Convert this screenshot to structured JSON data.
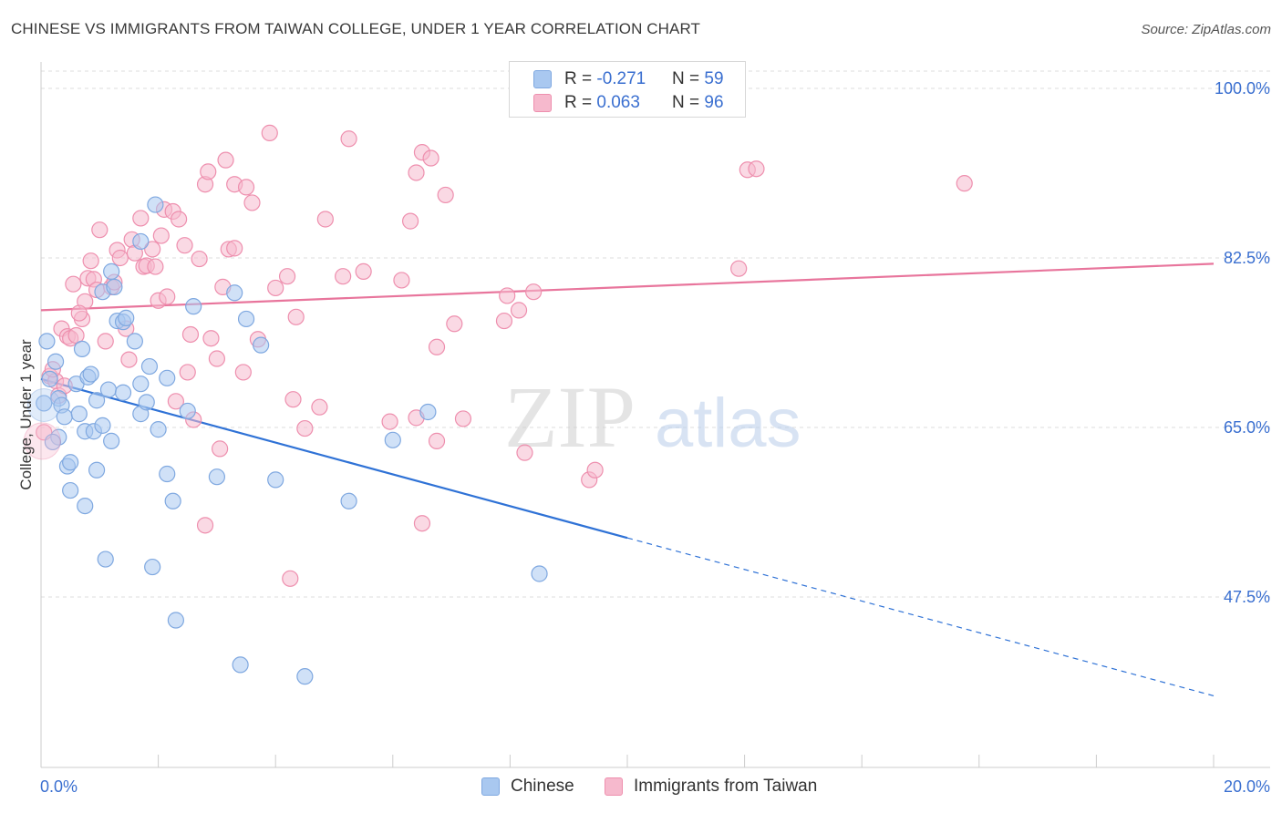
{
  "title": "CHINESE VS IMMIGRANTS FROM TAIWAN COLLEGE, UNDER 1 YEAR CORRELATION CHART",
  "source": "Source: ZipAtlas.com",
  "watermark": {
    "zip": "ZIP",
    "atlas": "atlas"
  },
  "colors": {
    "blue_fill": "#a9c8f0",
    "blue_stroke": "#7fa8e0",
    "blue_line": "#2f72d6",
    "pink_fill": "#f6b9cd",
    "pink_stroke": "#ee8fae",
    "pink_line": "#e8759c",
    "tick_label": "#3a6fd0",
    "grid": "#dddddd"
  },
  "legend_top": {
    "rows": [
      {
        "r_label": "R = ",
        "r_value": "-0.271",
        "n_label": "N = ",
        "n_value": "59"
      },
      {
        "r_label": "R = ",
        "r_value": "0.063",
        "n_label": "N = ",
        "n_value": "96"
      }
    ]
  },
  "legend_bottom": {
    "items": [
      "Chinese",
      "Immigrants from Taiwan"
    ]
  },
  "chart_data": {
    "type": "scatter",
    "title": "CHINESE VS IMMIGRANTS FROM TAIWAN COLLEGE, UNDER 1 YEAR CORRELATION CHART",
    "xlabel": "",
    "ylabel": "College, Under 1 year",
    "xlim": [
      0,
      20
    ],
    "ylim": [
      32.5,
      103.5
    ],
    "x_tick_labels": [
      "0.0%",
      "20.0%"
    ],
    "y_ticks": [
      47.5,
      65.0,
      82.5,
      100.0
    ],
    "y_tick_labels": [
      "47.5%",
      "65.0%",
      "82.5%",
      "100.0%"
    ],
    "grid": true,
    "series": [
      {
        "name": "Chinese",
        "r": -0.271,
        "n": 59,
        "trend": {
          "x0": 0,
          "y0": 70.0,
          "x1": 10.0,
          "y1": 53.6,
          "x_end": 20.0,
          "y_end": 37.3
        },
        "points": [
          [
            0.1,
            73.9
          ],
          [
            0.25,
            71.8
          ],
          [
            0.15,
            70.0
          ],
          [
            0.3,
            68.0
          ],
          [
            0.35,
            67.3
          ],
          [
            0.4,
            66.1
          ],
          [
            0.3,
            64.0
          ],
          [
            0.45,
            61.0
          ],
          [
            0.5,
            61.4
          ],
          [
            0.5,
            58.5
          ],
          [
            0.6,
            69.5
          ],
          [
            0.65,
            66.4
          ],
          [
            0.7,
            73.1
          ],
          [
            0.75,
            64.6
          ],
          [
            0.75,
            56.9
          ],
          [
            0.8,
            70.2
          ],
          [
            0.85,
            70.5
          ],
          [
            0.9,
            64.6
          ],
          [
            0.95,
            67.8
          ],
          [
            0.95,
            60.6
          ],
          [
            1.05,
            79.0
          ],
          [
            1.05,
            65.2
          ],
          [
            1.1,
            51.4
          ],
          [
            1.15,
            68.9
          ],
          [
            1.2,
            81.1
          ],
          [
            1.2,
            63.6
          ],
          [
            1.25,
            79.5
          ],
          [
            1.3,
            76.0
          ],
          [
            1.4,
            75.9
          ],
          [
            1.4,
            68.6
          ],
          [
            1.45,
            76.3
          ],
          [
            1.6,
            73.9
          ],
          [
            1.7,
            66.4
          ],
          [
            1.7,
            69.5
          ],
          [
            1.7,
            84.2
          ],
          [
            1.8,
            67.6
          ],
          [
            1.85,
            71.3
          ],
          [
            1.9,
            50.6
          ],
          [
            1.95,
            88.0
          ],
          [
            2.0,
            64.8
          ],
          [
            2.15,
            70.1
          ],
          [
            2.15,
            60.2
          ],
          [
            2.25,
            57.4
          ],
          [
            2.3,
            45.1
          ],
          [
            2.5,
            66.7
          ],
          [
            2.6,
            77.5
          ],
          [
            3.0,
            59.9
          ],
          [
            3.3,
            78.9
          ],
          [
            3.4,
            40.5
          ],
          [
            3.5,
            76.2
          ],
          [
            3.75,
            73.5
          ],
          [
            4.0,
            59.6
          ],
          [
            4.5,
            39.3
          ],
          [
            5.25,
            57.4
          ],
          [
            6.0,
            63.7
          ],
          [
            6.6,
            66.6
          ],
          [
            8.5,
            49.9
          ],
          [
            0.05,
            67.5
          ],
          [
            0.2,
            63.5
          ]
        ]
      },
      {
        "name": "Immigrants from Taiwan",
        "r": 0.063,
        "n": 96,
        "trend": {
          "x0": 0,
          "y0": 77.1,
          "x1": 20.0,
          "y1": 81.9
        },
        "points": [
          [
            0.05,
            64.5
          ],
          [
            0.15,
            70.3
          ],
          [
            0.25,
            69.8
          ],
          [
            0.3,
            68.3
          ],
          [
            0.35,
            75.2
          ],
          [
            0.45,
            74.4
          ],
          [
            0.5,
            74.2
          ],
          [
            0.55,
            79.8
          ],
          [
            0.6,
            74.5
          ],
          [
            0.7,
            76.2
          ],
          [
            0.75,
            78.0
          ],
          [
            0.8,
            80.4
          ],
          [
            0.85,
            82.2
          ],
          [
            0.9,
            80.3
          ],
          [
            0.95,
            79.2
          ],
          [
            1.0,
            85.4
          ],
          [
            1.1,
            73.9
          ],
          [
            1.2,
            79.5
          ],
          [
            1.25,
            80.0
          ],
          [
            1.3,
            83.3
          ],
          [
            1.45,
            75.2
          ],
          [
            1.5,
            72.0
          ],
          [
            1.55,
            84.4
          ],
          [
            1.6,
            83.0
          ],
          [
            1.7,
            86.6
          ],
          [
            1.75,
            81.6
          ],
          [
            1.8,
            81.7
          ],
          [
            1.9,
            83.4
          ],
          [
            1.95,
            81.6
          ],
          [
            2.0,
            78.1
          ],
          [
            2.05,
            84.8
          ],
          [
            2.1,
            87.5
          ],
          [
            2.15,
            78.5
          ],
          [
            2.25,
            87.3
          ],
          [
            2.3,
            67.7
          ],
          [
            2.35,
            86.5
          ],
          [
            2.45,
            83.8
          ],
          [
            2.5,
            70.7
          ],
          [
            2.55,
            74.6
          ],
          [
            2.6,
            65.8
          ],
          [
            2.7,
            82.4
          ],
          [
            2.8,
            54.9
          ],
          [
            2.8,
            90.1
          ],
          [
            2.85,
            91.4
          ],
          [
            2.9,
            74.2
          ],
          [
            3.0,
            72.1
          ],
          [
            3.05,
            62.8
          ],
          [
            3.1,
            79.5
          ],
          [
            3.15,
            92.6
          ],
          [
            3.2,
            83.4
          ],
          [
            3.3,
            90.1
          ],
          [
            3.3,
            83.5
          ],
          [
            3.45,
            70.7
          ],
          [
            3.5,
            89.8
          ],
          [
            3.6,
            88.2
          ],
          [
            3.7,
            74.1
          ],
          [
            3.9,
            95.4
          ],
          [
            4.0,
            79.4
          ],
          [
            4.2,
            80.6
          ],
          [
            4.25,
            49.4
          ],
          [
            4.3,
            67.9
          ],
          [
            4.35,
            76.4
          ],
          [
            4.5,
            64.9
          ],
          [
            4.75,
            67.1
          ],
          [
            4.85,
            86.5
          ],
          [
            5.15,
            80.6
          ],
          [
            5.25,
            94.8
          ],
          [
            5.5,
            81.1
          ],
          [
            5.95,
            65.6
          ],
          [
            6.15,
            80.2
          ],
          [
            6.3,
            86.3
          ],
          [
            6.4,
            66.0
          ],
          [
            6.4,
            91.3
          ],
          [
            6.5,
            93.4
          ],
          [
            6.5,
            55.1
          ],
          [
            6.65,
            92.8
          ],
          [
            6.75,
            63.6
          ],
          [
            6.75,
            73.3
          ],
          [
            6.9,
            89.0
          ],
          [
            7.05,
            75.7
          ],
          [
            7.2,
            65.9
          ],
          [
            7.9,
            76.0
          ],
          [
            7.95,
            78.6
          ],
          [
            8.15,
            77.1
          ],
          [
            8.25,
            62.4
          ],
          [
            8.4,
            79.0
          ],
          [
            9.35,
            59.6
          ],
          [
            9.45,
            60.6
          ],
          [
            11.9,
            81.4
          ],
          [
            12.05,
            91.6
          ],
          [
            12.2,
            91.7
          ],
          [
            15.75,
            90.2
          ],
          [
            0.2,
            71.0
          ],
          [
            0.4,
            69.3
          ],
          [
            0.65,
            76.8
          ],
          [
            1.35,
            82.5
          ]
        ]
      }
    ]
  }
}
